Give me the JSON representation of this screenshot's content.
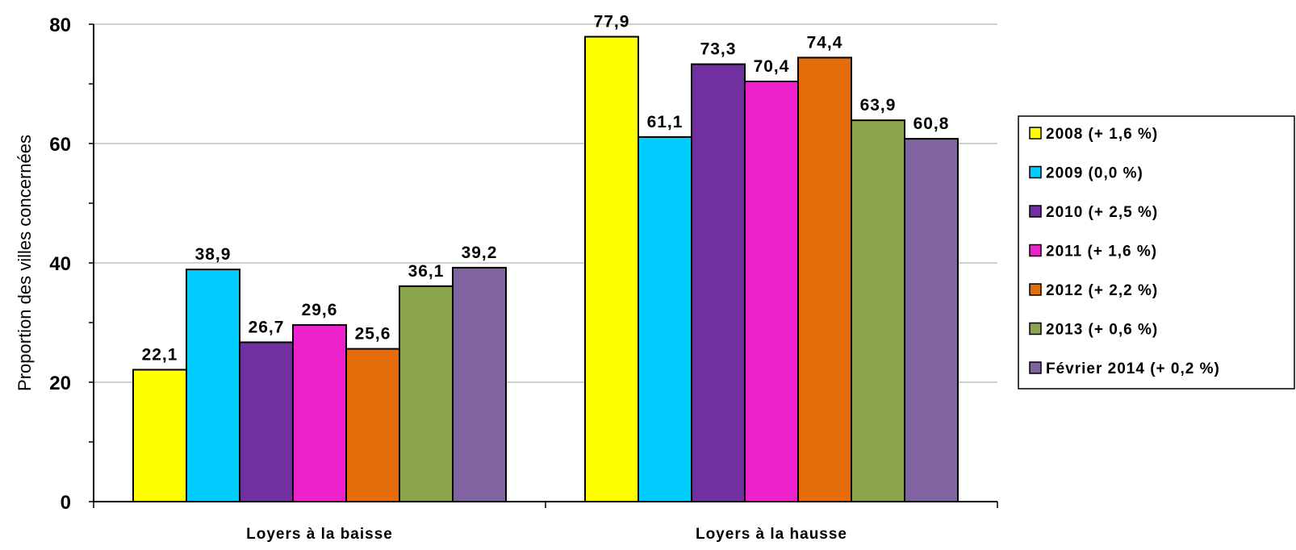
{
  "chart_data": {
    "type": "bar",
    "title": "",
    "ylabel": "Proportion des villes concernées",
    "xlabel": "",
    "ylim": [
      0,
      80
    ],
    "yticks": [
      0,
      20,
      40,
      60,
      80
    ],
    "grid": true,
    "legend_position": "right",
    "categories": [
      "Loyers à la baisse",
      "Loyers à la hausse"
    ],
    "series": [
      {
        "name": "2008 (+ 1,6 %)",
        "color": "#FFFF00",
        "values": [
          22.1,
          77.9
        ],
        "labels": [
          "22,1",
          "77,9"
        ]
      },
      {
        "name": "2009 (0,0 %)",
        "color": "#00CCFF",
        "values": [
          38.9,
          61.1
        ],
        "labels": [
          "38,9",
          "61,1"
        ]
      },
      {
        "name": "2010 (+ 2,5 %)",
        "color": "#7030A0",
        "values": [
          26.7,
          73.3
        ],
        "labels": [
          "26,7",
          "73,3"
        ]
      },
      {
        "name": "2011 (+ 1,6 %)",
        "color": "#EE22CC",
        "values": [
          29.6,
          70.4
        ],
        "labels": [
          "29,6",
          "70,4"
        ]
      },
      {
        "name": "2012 (+ 2,2 %)",
        "color": "#E46C0A",
        "values": [
          25.6,
          74.4
        ],
        "labels": [
          "25,6",
          "74,4"
        ]
      },
      {
        "name": "2013 (+ 0,6 %)",
        "color": "#8BA54E",
        "values": [
          36.1,
          63.9
        ],
        "labels": [
          "36,1",
          "63,9"
        ]
      },
      {
        "name": "Février 2014 (+ 0,2 %)",
        "color": "#8064A2",
        "values": [
          39.2,
          60.8
        ],
        "labels": [
          "39,2",
          "60,8"
        ]
      }
    ]
  }
}
